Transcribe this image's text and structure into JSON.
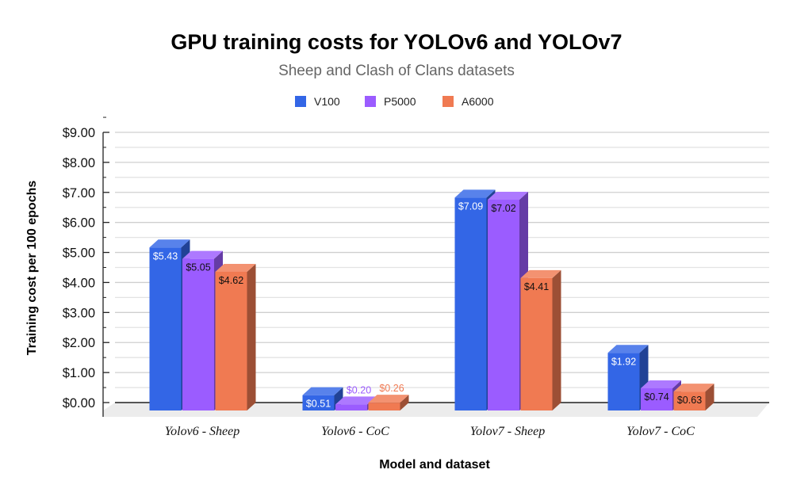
{
  "chart_data": {
    "type": "bar",
    "title": "GPU training costs for YOLOv6 and YOLOv7",
    "subtitle": "Sheep and Clash of Clans datasets",
    "xlabel": "Model and dataset",
    "ylabel": "Training cost per 100 epochs",
    "ylim": [
      0,
      9
    ],
    "yticks": [
      "$0.00",
      "$1.00",
      "$2.00",
      "$3.00",
      "$4.00",
      "$5.00",
      "$6.00",
      "$7.00",
      "$8.00",
      "$9.00"
    ],
    "grid": true,
    "legend_position": "top",
    "three_d": true,
    "categories": [
      "Yolov6 - Sheep",
      "Yolov6 - CoC",
      "Yolov7 - Sheep",
      "Yolov7 - CoC"
    ],
    "series": [
      {
        "name": "V100",
        "color": "#3366e6",
        "values": [
          5.43,
          0.51,
          7.09,
          1.92
        ],
        "labels": [
          "$5.43",
          "$0.51",
          "$7.09",
          "$1.92"
        ]
      },
      {
        "name": "P5000",
        "color": "#9b5cff",
        "values": [
          5.05,
          0.2,
          7.02,
          0.74
        ],
        "labels": [
          "$5.05",
          "$0.20",
          "$7.02",
          "$0.74"
        ]
      },
      {
        "name": "A6000",
        "color": "#f07a52",
        "values": [
          4.62,
          0.26,
          4.41,
          0.63
        ],
        "labels": [
          "$4.62",
          "$0.26",
          "$4.41",
          "$0.63"
        ]
      }
    ]
  }
}
